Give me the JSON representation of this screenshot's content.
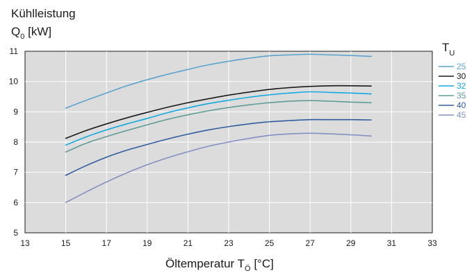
{
  "chart_data": {
    "type": "line",
    "ylabel": {
      "main": "Kühlleistung",
      "symbol": "Q",
      "sub": "0",
      "unit": "[kW]"
    },
    "xlabel": {
      "main": "Öltemperatur T",
      "sub": "Ö",
      "unit": "[°C]"
    },
    "legend_title": {
      "symbol": "T",
      "sub": "U"
    },
    "legend_placement": "right",
    "xlim": [
      13,
      33
    ],
    "ylim": [
      5,
      11
    ],
    "x_ticks": [
      "13",
      "15",
      "17",
      "19",
      "21",
      "23",
      "25",
      "27",
      "29",
      "31",
      "33"
    ],
    "y_ticks": [
      "5",
      "6",
      "7",
      "8",
      "9",
      "10",
      "11"
    ],
    "grid": true,
    "plot_background": "#dcdcdc",
    "series": [
      {
        "name": "25",
        "color": "#5aa3cf",
        "x": [
          15,
          16,
          17,
          18,
          19,
          20,
          21,
          22,
          23,
          24,
          25,
          26,
          27,
          28,
          29,
          30
        ],
        "y": [
          9.12,
          9.38,
          9.62,
          9.86,
          10.06,
          10.24,
          10.4,
          10.55,
          10.67,
          10.77,
          10.85,
          10.88,
          10.9,
          10.88,
          10.86,
          10.83
        ]
      },
      {
        "name": "30",
        "color": "#1a1a1a",
        "x": [
          15,
          16,
          17,
          18,
          19,
          20,
          21,
          22,
          23,
          24,
          25,
          26,
          27,
          28,
          29,
          30
        ],
        "y": [
          8.12,
          8.38,
          8.6,
          8.8,
          8.98,
          9.15,
          9.3,
          9.43,
          9.55,
          9.65,
          9.74,
          9.8,
          9.84,
          9.86,
          9.86,
          9.85
        ]
      },
      {
        "name": "32",
        "color": "#11a8e0",
        "x": [
          15,
          16,
          17,
          18,
          19,
          20,
          21,
          22,
          23,
          24,
          25,
          26,
          27,
          28,
          29,
          30
        ],
        "y": [
          7.9,
          8.17,
          8.4,
          8.6,
          8.78,
          8.97,
          9.13,
          9.27,
          9.38,
          9.48,
          9.56,
          9.62,
          9.66,
          9.64,
          9.62,
          9.59
        ]
      },
      {
        "name": "35",
        "color": "#5f9c96",
        "x": [
          15,
          16,
          17,
          18,
          19,
          20,
          21,
          22,
          23,
          24,
          25,
          26,
          27,
          28,
          29,
          30
        ],
        "y": [
          7.67,
          7.96,
          8.18,
          8.38,
          8.57,
          8.75,
          8.9,
          9.03,
          9.14,
          9.23,
          9.3,
          9.35,
          9.37,
          9.35,
          9.32,
          9.3
        ]
      },
      {
        "name": "40",
        "color": "#2f5c9e",
        "x": [
          15,
          16,
          17,
          18,
          19,
          20,
          21,
          22,
          23,
          24,
          25,
          26,
          27,
          28,
          29,
          30
        ],
        "y": [
          6.9,
          7.22,
          7.5,
          7.73,
          7.92,
          8.1,
          8.26,
          8.4,
          8.51,
          8.6,
          8.67,
          8.71,
          8.74,
          8.74,
          8.74,
          8.73
        ]
      },
      {
        "name": "45",
        "color": "#8290c2",
        "x": [
          15,
          16,
          17,
          18,
          19,
          20,
          21,
          22,
          23,
          24,
          25,
          26,
          27,
          28,
          29,
          30
        ],
        "y": [
          6.0,
          6.35,
          6.68,
          6.98,
          7.25,
          7.48,
          7.68,
          7.86,
          8.0,
          8.12,
          8.22,
          8.27,
          8.29,
          8.27,
          8.24,
          8.2
        ]
      }
    ]
  }
}
